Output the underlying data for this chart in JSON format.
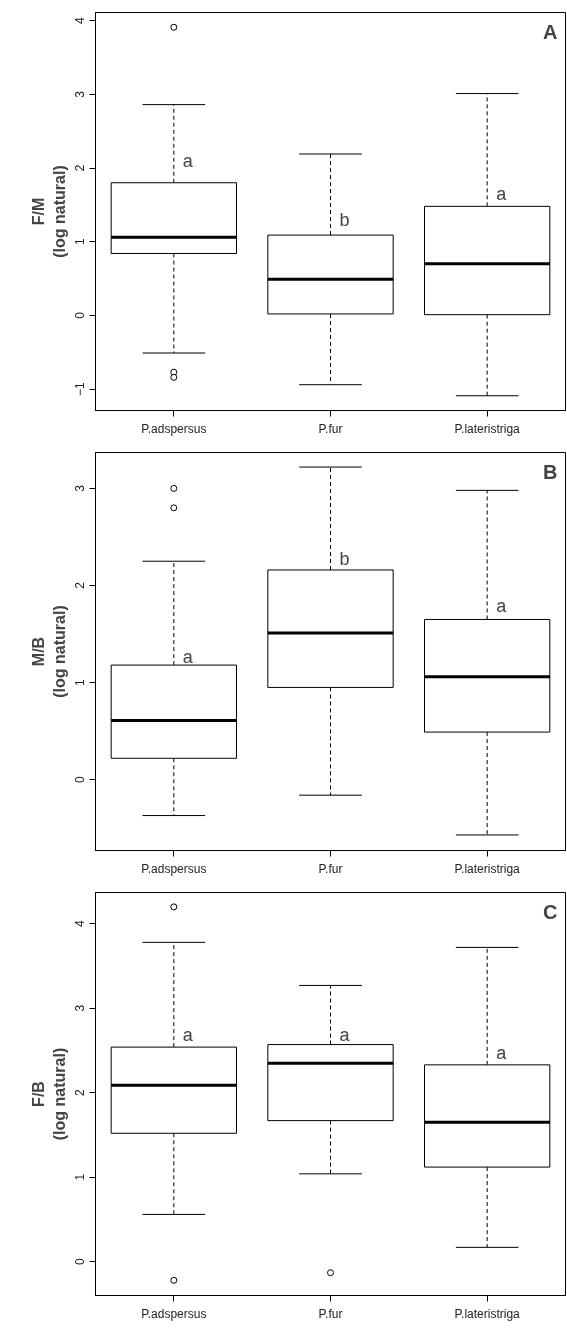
{
  "chart_data": [
    {
      "type": "box",
      "title": "A",
      "ylabel": "F/M\n(log natural)",
      "categories": [
        "P.adspersus",
        "P.fur",
        "P.lateristriga"
      ],
      "ylim": [
        -1.29,
        4.11
      ],
      "yticks": [
        -1,
        0,
        1,
        2,
        3,
        4
      ],
      "grid": false,
      "boxes": [
        {
          "low": -0.51,
          "q1": 0.84,
          "median": 1.06,
          "q3": 1.8,
          "high": 2.86,
          "outliers": [
            3.91,
            -0.77,
            -0.84
          ]
        },
        {
          "low": -0.94,
          "q1": 0.02,
          "median": 0.49,
          "q3": 1.09,
          "high": 2.19
        },
        {
          "low": -1.09,
          "q1": 0.01,
          "median": 0.7,
          "q3": 1.48,
          "high": 3.01
        }
      ],
      "annotations": [
        {
          "text": "a",
          "x": "P.adspersus",
          "y": 2.1
        },
        {
          "text": "b",
          "x": "P.fur",
          "y": 1.3
        },
        {
          "text": "a",
          "x": "P.lateristriga",
          "y": 1.65
        }
      ]
    },
    {
      "type": "box",
      "title": "B",
      "ylabel": "M/B\n(log natural)",
      "categories": [
        "P.adspersus",
        "P.fur",
        "P.lateristriga"
      ],
      "ylim": [
        -0.73,
        3.37
      ],
      "yticks": [
        0,
        1,
        2,
        3
      ],
      "grid": false,
      "boxes": [
        {
          "low": -0.37,
          "q1": 0.22,
          "median": 0.61,
          "q3": 1.18,
          "high": 2.25,
          "outliers": [
            3.0,
            2.8
          ]
        },
        {
          "low": -0.16,
          "q1": 0.95,
          "median": 1.51,
          "q3": 2.16,
          "high": 3.22
        },
        {
          "low": -0.57,
          "q1": 0.49,
          "median": 1.06,
          "q3": 1.65,
          "high": 2.98
        }
      ],
      "annotations": [
        {
          "text": "a",
          "x": "P.adspersus",
          "y": 1.26
        },
        {
          "text": "b",
          "x": "P.fur",
          "y": 2.27
        },
        {
          "text": "a",
          "x": "P.lateristriga",
          "y": 1.79
        }
      ]
    },
    {
      "type": "box",
      "title": "C",
      "ylabel": "F/B\n(log natural)",
      "categories": [
        "P.adspersus",
        "P.fur",
        "P.lateristriga"
      ],
      "ylim": [
        -0.4,
        4.37
      ],
      "yticks": [
        0,
        1,
        2,
        3,
        4
      ],
      "grid": false,
      "boxes": [
        {
          "low": 0.56,
          "q1": 1.52,
          "median": 2.09,
          "q3": 2.54,
          "high": 3.78,
          "outliers": [
            4.2,
            -0.22
          ]
        },
        {
          "low": 1.04,
          "q1": 1.67,
          "median": 2.35,
          "q3": 2.57,
          "high": 3.27,
          "outliers": [
            -0.13
          ]
        },
        {
          "low": 0.17,
          "q1": 1.12,
          "median": 1.65,
          "q3": 2.33,
          "high": 3.72
        }
      ],
      "annotations": [
        {
          "text": "a",
          "x": "P.adspersus",
          "y": 2.68
        },
        {
          "text": "a",
          "x": "P.fur",
          "y": 2.68
        },
        {
          "text": "a",
          "x": "P.lateristriga",
          "y": 2.47
        }
      ]
    }
  ]
}
